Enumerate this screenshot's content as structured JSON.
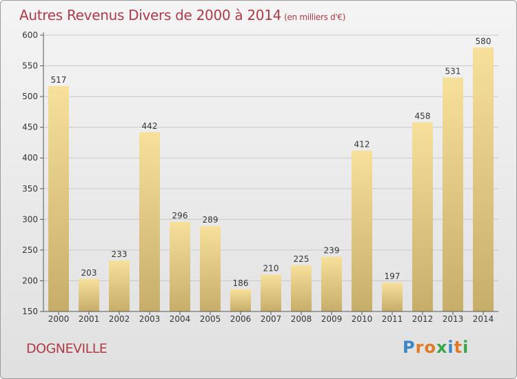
{
  "header": {
    "title": "Autres Revenus Divers de 2000 à 2014",
    "subtitle": "(en milliers d'€)"
  },
  "footer": {
    "commune": "DOGNEVILLE",
    "logo_text": "Proxiti",
    "logo_letters": [
      {
        "ch": "P",
        "color": "#3a86c8"
      },
      {
        "ch": "r",
        "color": "#e07b24"
      },
      {
        "ch": "o",
        "color": "#e07b24"
      },
      {
        "ch": "x",
        "color": "#3aa64a"
      },
      {
        "ch": "i",
        "color": "#3a86c8"
      },
      {
        "ch": "t",
        "color": "#e07b24"
      },
      {
        "ch": "i",
        "color": "#3aa64a"
      }
    ]
  },
  "colors": {
    "title": "#b03a48",
    "bar_top": "#f6e09a",
    "bar_bottom": "#c7ad6a",
    "grid": "#c8c8c8"
  },
  "chart_data": {
    "type": "bar",
    "title": "Autres Revenus Divers de 2000 à 2014",
    "subtitle": "(en milliers d'€)",
    "categories": [
      "2000",
      "2001",
      "2002",
      "2003",
      "2004",
      "2005",
      "2006",
      "2007",
      "2008",
      "2009",
      "2010",
      "2011",
      "2012",
      "2013",
      "2014"
    ],
    "values": [
      517,
      203,
      233,
      442,
      296,
      289,
      186,
      210,
      225,
      239,
      412,
      197,
      458,
      531,
      580
    ],
    "ylim": [
      150,
      600
    ],
    "yticks": [
      150,
      200,
      250,
      300,
      350,
      400,
      450,
      500,
      550,
      600
    ],
    "grid": true,
    "xlabel": "",
    "ylabel": ""
  }
}
